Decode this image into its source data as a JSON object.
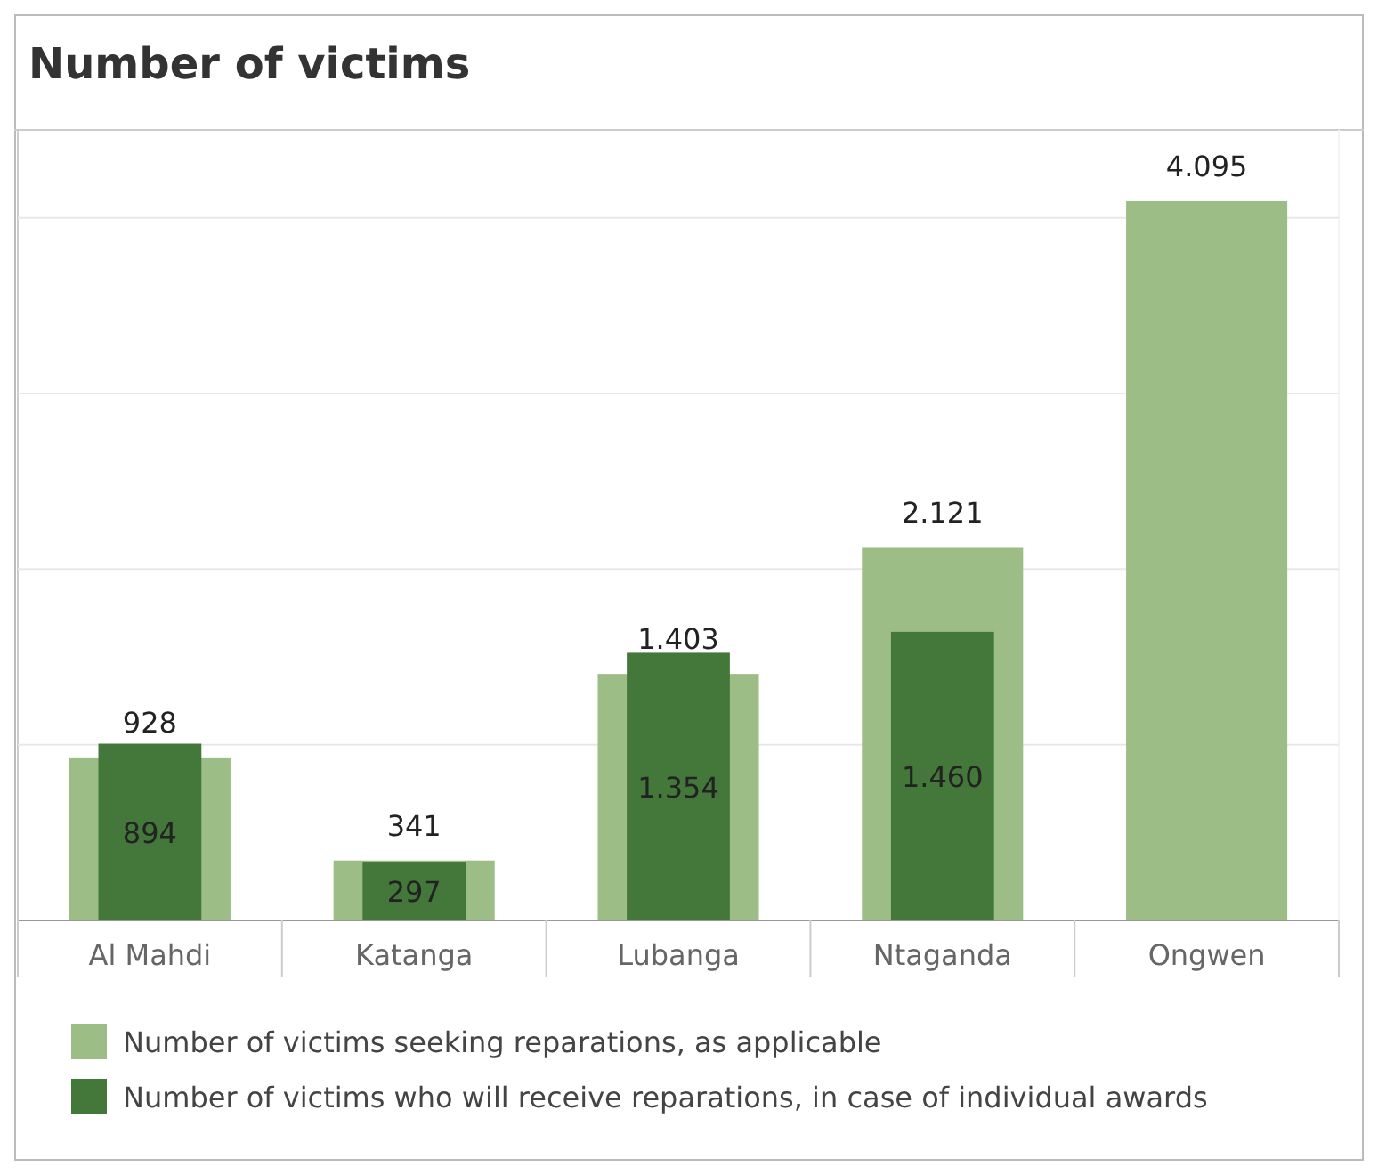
{
  "chart_data": {
    "type": "bar",
    "title": "Number of victims",
    "categories": [
      "Al Mahdi",
      "Katanga",
      "Lubanga",
      "Ntaganda",
      "Ongwen"
    ],
    "series": [
      {
        "name": "Number of victims seeking reparations, as applicable",
        "color": "#9dbd86",
        "values": [
          928,
          341,
          1403,
          2121,
          4095
        ],
        "value_labels": [
          "928",
          "341",
          "1.403",
          "2.121",
          "4.095"
        ]
      },
      {
        "name": "Number of victims who will receive reparations, in case of individual awards",
        "color": "#44773a",
        "axis": "y2",
        "values": [
          894,
          297,
          1354,
          1460,
          null
        ],
        "value_labels": [
          "894",
          "297",
          "1.354",
          "1.460",
          null
        ]
      }
    ],
    "ylim": [
      0,
      4500
    ],
    "yticks": [
      {
        "value": 1000,
        "label": null
      },
      {
        "value": 2000,
        "label": null
      },
      {
        "value": 3000,
        "label": null
      },
      {
        "value": 4000,
        "label": null
      }
    ],
    "y2lim": [
      0,
      4000
    ],
    "grid": "y",
    "tick_labels": "x",
    "legend": "bottom"
  }
}
